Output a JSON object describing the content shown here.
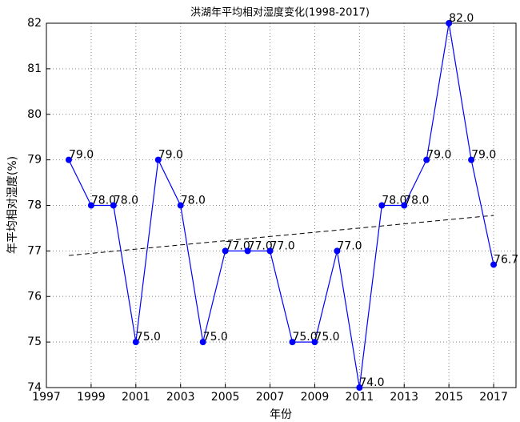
{
  "chart_data": {
    "type": "line",
    "title": "洪湖年平均相对湿度变化(1998-2017)",
    "xlabel": "年份",
    "ylabel": "年平均相对湿度(%)",
    "x": [
      1998,
      1999,
      2000,
      2001,
      2002,
      2003,
      2004,
      2005,
      2006,
      2007,
      2008,
      2009,
      2010,
      2011,
      2012,
      2013,
      2014,
      2015,
      2016,
      2017
    ],
    "series": [
      {
        "color": "#0000ff",
        "values": [
          79,
          78,
          78,
          75,
          79,
          78,
          75,
          77,
          77,
          77,
          75,
          75,
          77,
          74,
          78,
          78,
          79,
          82,
          79,
          76.7
        ],
        "value_labels": [
          "79.0",
          "78.0",
          "78.0",
          "75.0",
          "79.0",
          "78.0",
          "75.0",
          "77.0",
          "77.0",
          "77.0",
          "75.0",
          "75.0",
          "77.0",
          "74.0",
          "78.0",
          "78.0",
          "79.0",
          "82.0",
          "79.0",
          "76.7"
        ]
      }
    ],
    "trend": {
      "color": "#000000",
      "x": [
        1998,
        2017
      ],
      "values": [
        76.9,
        77.78
      ]
    },
    "xlim": [
      1997,
      2018
    ],
    "xticks": [
      1997,
      1999,
      2001,
      2003,
      2005,
      2007,
      2009,
      2011,
      2013,
      2015,
      2017
    ],
    "ylim": [
      74,
      82
    ],
    "yticks": [
      74,
      75,
      76,
      77,
      78,
      79,
      80,
      81,
      82
    ],
    "grid": true
  }
}
